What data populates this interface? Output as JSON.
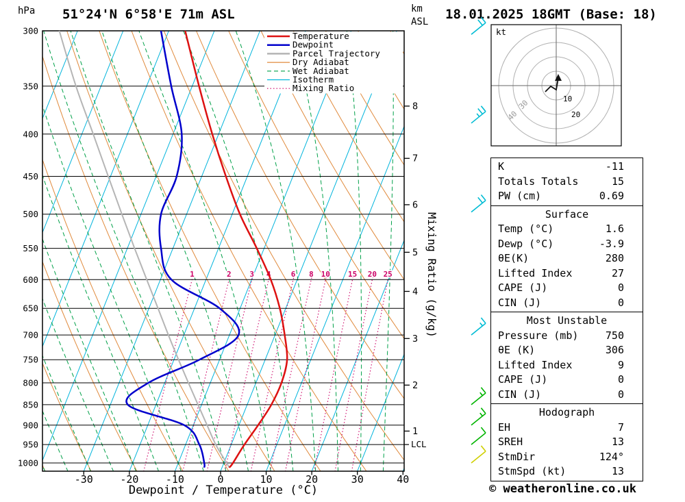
{
  "header": {
    "pressure_unit": "hPa",
    "station": "51°24'N 6°58'E 71m ASL",
    "km_unit": "km",
    "asl_unit": "ASL",
    "datetime": "18.01.2025 18GMT (Base: 18)"
  },
  "axes": {
    "xlabel": "Dewpoint / Temperature (°C)",
    "mixing_ratio_label": "Mixing Ratio (g/kg)",
    "lcl_label": "LCL",
    "pressure_ticks": [
      300,
      350,
      400,
      450,
      500,
      550,
      600,
      650,
      700,
      750,
      800,
      850,
      900,
      950,
      1000
    ],
    "temp_ticks": [
      -30,
      -20,
      -10,
      0,
      10,
      20,
      30,
      40
    ],
    "km_ticks": [
      {
        "km": 1,
        "p": 915
      },
      {
        "km": 2,
        "p": 805
      },
      {
        "km": 3,
        "p": 707
      },
      {
        "km": 4,
        "p": 620
      },
      {
        "km": 5,
        "p": 556
      },
      {
        "km": 6,
        "p": 487
      },
      {
        "km": 7,
        "p": 428
      },
      {
        "km": 8,
        "p": 370
      }
    ]
  },
  "legend": [
    {
      "label": "Temperature",
      "color": "#dd1111",
      "width": 2.5,
      "dash": null
    },
    {
      "label": "Dewpoint",
      "color": "#0000cc",
      "width": 2.5,
      "dash": null
    },
    {
      "label": "Parcel Trajectory",
      "color": "#b5b5b5",
      "width": 2.5,
      "dash": null
    },
    {
      "label": "Dry Adiabat",
      "color": "#e08a3c",
      "width": 1.2,
      "dash": null
    },
    {
      "label": "Wet Adiabat",
      "color": "#00a048",
      "width": 1.2,
      "dash": "6,4"
    },
    {
      "label": "Isotherm",
      "color": "#00b4dc",
      "width": 1.2,
      "dash": null
    },
    {
      "label": "Mixing Ratio",
      "color": "#cc0066",
      "width": 1.2,
      "dash": "1.5,3"
    }
  ],
  "hodograph": {
    "unit_label": "kt",
    "ring_labels": [
      "10",
      "20",
      "30",
      "40"
    ],
    "trace_points": [
      [
        84,
        101
      ],
      [
        92,
        93
      ],
      [
        100,
        98
      ],
      [
        103,
        81
      ]
    ]
  },
  "tables": [
    {
      "title": "",
      "rows": [
        {
          "label": "K",
          "value": "-11"
        },
        {
          "label": "Totals Totals",
          "value": "15"
        },
        {
          "label": "PW (cm)",
          "value": "0.69"
        }
      ]
    },
    {
      "title": "Surface",
      "rows": [
        {
          "label": "Temp (°C)",
          "value": "1.6"
        },
        {
          "label": "Dewp (°C)",
          "value": "-3.9"
        },
        {
          "label": "θE(K)",
          "value": "280"
        },
        {
          "label": "Lifted Index",
          "value": "27"
        },
        {
          "label": "CAPE (J)",
          "value": "0"
        },
        {
          "label": "CIN (J)",
          "value": "0"
        }
      ]
    },
    {
      "title": "Most Unstable",
      "rows": [
        {
          "label": "Pressure (mb)",
          "value": "750"
        },
        {
          "label": "θE (K)",
          "value": "306"
        },
        {
          "label": "Lifted Index",
          "value": "9"
        },
        {
          "label": "CAPE (J)",
          "value": "0"
        },
        {
          "label": "CIN (J)",
          "value": "0"
        }
      ]
    },
    {
      "title": "Hodograph",
      "rows": [
        {
          "label": "EH",
          "value": "7"
        },
        {
          "label": "SREH",
          "value": "13"
        },
        {
          "label": "StmDir",
          "value": "124°"
        },
        {
          "label": "StmSpd (kt)",
          "value": "13"
        }
      ]
    }
  ],
  "footer": {
    "copyright": "© weatheronline.co.uk"
  },
  "chart_data": {
    "type": "skewt_logp",
    "title": "51°24'N 6°58'E 71m ASL",
    "valid": "18.01.2025 18GMT (Base: 18)",
    "pressure_axis": {
      "range": [
        300,
        1000
      ],
      "scale": "log",
      "unit": "hPa"
    },
    "temp_axis": {
      "range": [
        -30,
        40
      ],
      "unit": "°C"
    },
    "isotherm_step": 10,
    "dry_adiabat_step": 10,
    "wet_adiabat_step": 5,
    "mixing_ratio_lines": [
      1,
      2,
      3,
      4,
      6,
      8,
      10,
      15,
      20,
      25
    ],
    "lcl_pressure": 950,
    "temperature_profile": [
      [
        1013,
        1.6
      ],
      [
        1000,
        2.0
      ],
      [
        950,
        2.9
      ],
      [
        900,
        4.2
      ],
      [
        850,
        5.3
      ],
      [
        800,
        5.6
      ],
      [
        750,
        4.8
      ],
      [
        700,
        2.1
      ],
      [
        650,
        -1.3
      ],
      [
        600,
        -5.8
      ],
      [
        550,
        -11.6
      ],
      [
        500,
        -18.3
      ],
      [
        450,
        -24.7
      ],
      [
        400,
        -31.4
      ],
      [
        350,
        -38.5
      ],
      [
        300,
        -46.4
      ]
    ],
    "dewpoint_profile": [
      [
        1013,
        -3.9
      ],
      [
        1000,
        -4.3
      ],
      [
        950,
        -7.0
      ],
      [
        900,
        -12.0
      ],
      [
        850,
        -26.2
      ],
      [
        800,
        -23.6
      ],
      [
        750,
        -14.4
      ],
      [
        700,
        -8.0
      ],
      [
        650,
        -14.5
      ],
      [
        600,
        -27.6
      ],
      [
        550,
        -32.6
      ],
      [
        500,
        -35.6
      ],
      [
        450,
        -35.5
      ],
      [
        400,
        -38.1
      ],
      [
        350,
        -44.6
      ],
      [
        300,
        -51.7
      ]
    ],
    "parcel_profile": [
      [
        1013,
        1.6
      ],
      [
        1000,
        0.6
      ],
      [
        950,
        -3.4
      ],
      [
        900,
        -7.0
      ],
      [
        850,
        -10.8
      ],
      [
        800,
        -14.8
      ],
      [
        750,
        -19.0
      ],
      [
        700,
        -23.4
      ],
      [
        650,
        -28.0
      ],
      [
        600,
        -33.0
      ],
      [
        550,
        -38.4
      ],
      [
        500,
        -44.2
      ],
      [
        450,
        -50.5
      ],
      [
        400,
        -57.5
      ],
      [
        350,
        -65.5
      ],
      [
        300,
        -74.0
      ]
    ],
    "wind_barbs": [
      {
        "p": 303,
        "color": "#00bcd4",
        "feathers": 2
      },
      {
        "p": 388,
        "color": "#00bcd4",
        "feathers": 2.5
      },
      {
        "p": 497,
        "color": "#00bcd4",
        "feathers": 2
      },
      {
        "p": 700,
        "color": "#00bcd4",
        "feathers": 1.5
      },
      {
        "p": 850,
        "color": "#00b400",
        "feathers": 1.5
      },
      {
        "p": 900,
        "color": "#00b400",
        "feathers": 1.5
      },
      {
        "p": 950,
        "color": "#00b400",
        "feathers": 1
      },
      {
        "p": 1000,
        "color": "#cfcf00",
        "feathers": 1
      }
    ],
    "colors": {
      "temperature": "#dd1111",
      "dewpoint": "#0000cc",
      "parcel": "#b5b5b5",
      "dry_adiabat": "#e08a3c",
      "wet_adiabat": "#00a048",
      "isotherm": "#00b4dc",
      "mixing_ratio": "#cc0066",
      "grid": "#000000"
    }
  }
}
